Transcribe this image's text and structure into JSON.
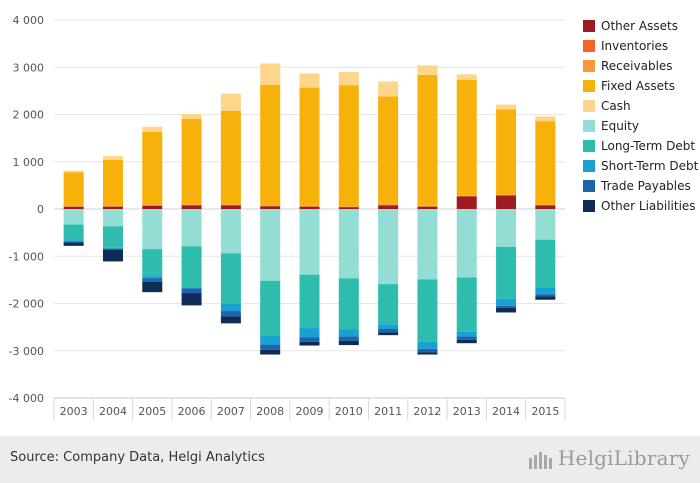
{
  "chart_data": {
    "type": "bar",
    "stacked": true,
    "categories": [
      "2003",
      "2004",
      "2005",
      "2006",
      "2007",
      "2008",
      "2009",
      "2010",
      "2011",
      "2012",
      "2013",
      "2014",
      "2015"
    ],
    "ylim": [
      -4000,
      4000
    ],
    "yticks": [
      -4000,
      -3000,
      -2000,
      -1000,
      0,
      1000,
      2000,
      3000,
      4000
    ],
    "ytick_labels": [
      "-4 000",
      "-3 000",
      "-2 000",
      "-1 000",
      "0",
      "1 000",
      "2 000",
      "3 000",
      "4 000"
    ],
    "grid": true,
    "legend_position": "right",
    "series": [
      {
        "name": "Other Assets",
        "color": "#9e1b1f",
        "values": [
          50,
          50,
          70,
          80,
          80,
          60,
          50,
          40,
          80,
          50,
          270,
          290,
          80
        ]
      },
      {
        "name": "Inventories",
        "color": "#f4632a",
        "values": [
          0,
          0,
          0,
          0,
          0,
          0,
          0,
          0,
          0,
          0,
          0,
          0,
          0
        ]
      },
      {
        "name": "Receivables",
        "color": "#f89a3a",
        "values": [
          10,
          20,
          30,
          20,
          20,
          20,
          20,
          10,
          30,
          20,
          10,
          10,
          10
        ]
      },
      {
        "name": "Fixed Assets",
        "color": "#f7b10b",
        "values": [
          720,
          970,
          1530,
          1810,
          1980,
          2550,
          2500,
          2570,
          2270,
          2770,
          2450,
          1810,
          1770
        ]
      },
      {
        "name": "Cash",
        "color": "#fdd58b",
        "values": [
          30,
          80,
          110,
          100,
          360,
          450,
          300,
          280,
          320,
          200,
          120,
          100,
          100
        ]
      },
      {
        "name": "Equity",
        "color": "#93ddd4",
        "values": [
          -330,
          -370,
          -850,
          -790,
          -940,
          -1520,
          -1390,
          -1470,
          -1590,
          -1490,
          -1450,
          -800,
          -650
        ]
      },
      {
        "name": "Long-Term Debt",
        "color": "#2dbcae",
        "values": [
          -330,
          -450,
          -570,
          -870,
          -1070,
          -1150,
          -1130,
          -1080,
          -850,
          -1320,
          -1150,
          -1100,
          -1010
        ]
      },
      {
        "name": "Short-Term Debt",
        "color": "#1aa1d4",
        "values": [
          -30,
          -20,
          -50,
          -20,
          -150,
          -200,
          -200,
          -150,
          -100,
          -150,
          -100,
          -150,
          -150
        ]
      },
      {
        "name": "Trade Payables",
        "color": "#1e63ad",
        "values": [
          -20,
          -20,
          -70,
          -100,
          -110,
          -110,
          -90,
          -90,
          -70,
          -70,
          -70,
          -40,
          -40
        ]
      },
      {
        "name": "Other Liabilities",
        "color": "#0d2d57",
        "values": [
          -70,
          -250,
          -220,
          -260,
          -150,
          -100,
          -80,
          -90,
          -60,
          -50,
          -70,
          -100,
          -70
        ]
      }
    ]
  },
  "footer": {
    "source": "Source: Company Data, Helgi Analytics",
    "brand": "HelgiLibrary"
  }
}
